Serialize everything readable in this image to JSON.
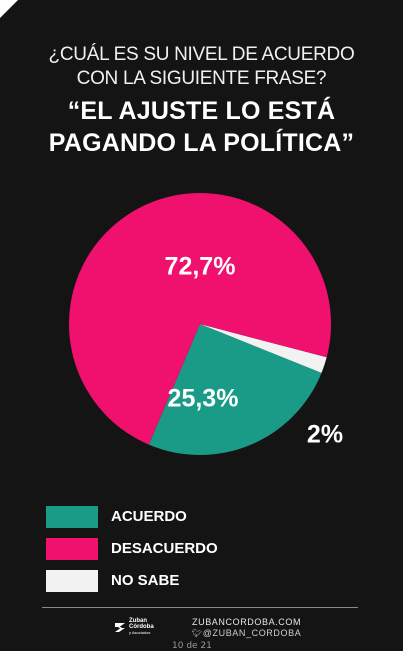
{
  "question": {
    "line1": "¿CUÁL ES SU NIVEL DE ACUERDO",
    "line2": "CON LA SIGUIENTE FRASE?"
  },
  "quote": {
    "line1": "“EL AJUSTE LO ESTÁ",
    "line2": "PAGANDO LA POLÍTICA”"
  },
  "chart_data": {
    "type": "pie",
    "slices": [
      {
        "label": "DESACUERDO",
        "value": 72.7,
        "value_label": "72,7%",
        "color": "#f0106e"
      },
      {
        "label": "ACUERDO",
        "value": 25.3,
        "value_label": "25,3%",
        "color": "#199b87"
      },
      {
        "label": "NO SABE",
        "value": 2,
        "value_label": "2%",
        "color": "#f2f2f2"
      }
    ],
    "legend": [
      "ACUERDO",
      "DESACUERDO",
      "NO SABE"
    ],
    "legend_placement": "bottom-left"
  },
  "footer": {
    "logo_line1": "Zuban",
    "logo_line2": "Córdoba",
    "logo_line3": "y Asociados",
    "website": "ZUBANCORDOBA.COM",
    "twitter_icon": "twitter-icon",
    "handle": "@ZUBAN_CORDOBA",
    "date": "10 de 21"
  }
}
